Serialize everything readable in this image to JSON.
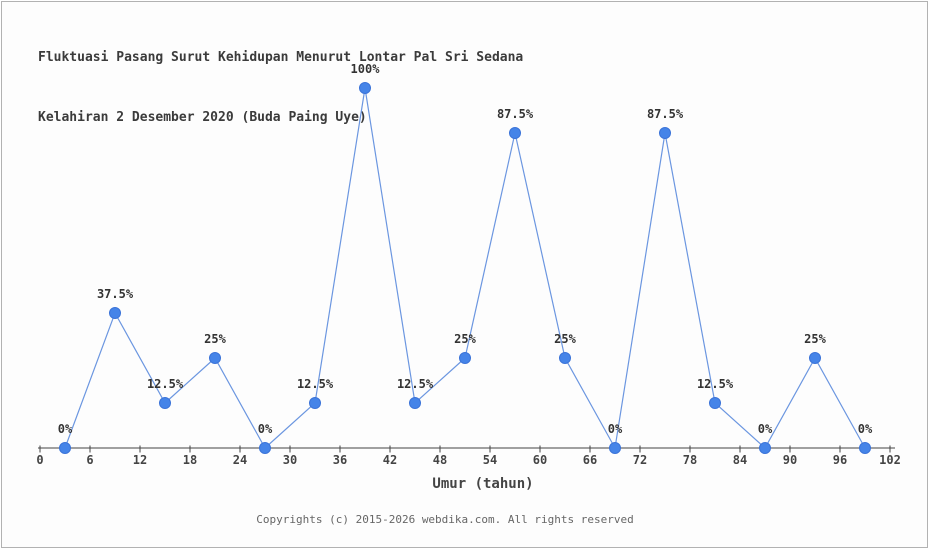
{
  "title": {
    "line1": "Fluktuasi Pasang Surut Kehidupan Menurut Lontar Pal Sri Sedana",
    "line2": "Kelahiran 2 Desember 2020 (Buda Paing Uye)"
  },
  "footer": {
    "copyright": "Copyrights (c) 2015-2026 webdika.com. All rights reserved"
  },
  "chart_data": {
    "type": "line",
    "title": "Fluktuasi Pasang Surut Kehidupan Menurut Lontar Pal Sri Sedana Kelahiran 2 Desember 2020 (Buda Paing Uye)",
    "xlabel": "Umur (tahun)",
    "ylabel": "",
    "x": [
      3,
      9,
      15,
      21,
      27,
      33,
      39,
      45,
      51,
      57,
      63,
      69,
      75,
      81,
      87,
      93,
      99
    ],
    "values": [
      0,
      37.5,
      12.5,
      25,
      0,
      12.5,
      100,
      12.5,
      25,
      87.5,
      25,
      0,
      87.5,
      12.5,
      0,
      25,
      0
    ],
    "point_labels": [
      "0%",
      "37.5%",
      "12.5%",
      "25%",
      "0%",
      "12.5%",
      "100%",
      "12.5%",
      "25%",
      "87.5%",
      "25%",
      "0%",
      "87.5%",
      "12.5%",
      "0%",
      "25%",
      "0%"
    ],
    "x_ticks": [
      0,
      6,
      12,
      18,
      24,
      30,
      36,
      42,
      48,
      54,
      60,
      66,
      72,
      78,
      84,
      90,
      96,
      102
    ],
    "xlim": [
      0,
      102
    ],
    "ylim": [
      0,
      100
    ],
    "grid": false,
    "legend": "none",
    "colors": {
      "marker": "#4584e8",
      "marker_edge": "#3a73d9",
      "line": "#6b96e0",
      "axis": "#444444",
      "tick_text": "#444444",
      "label_text": "#333333",
      "title_text": "#3b3b3b",
      "footer_text": "#666666"
    }
  }
}
